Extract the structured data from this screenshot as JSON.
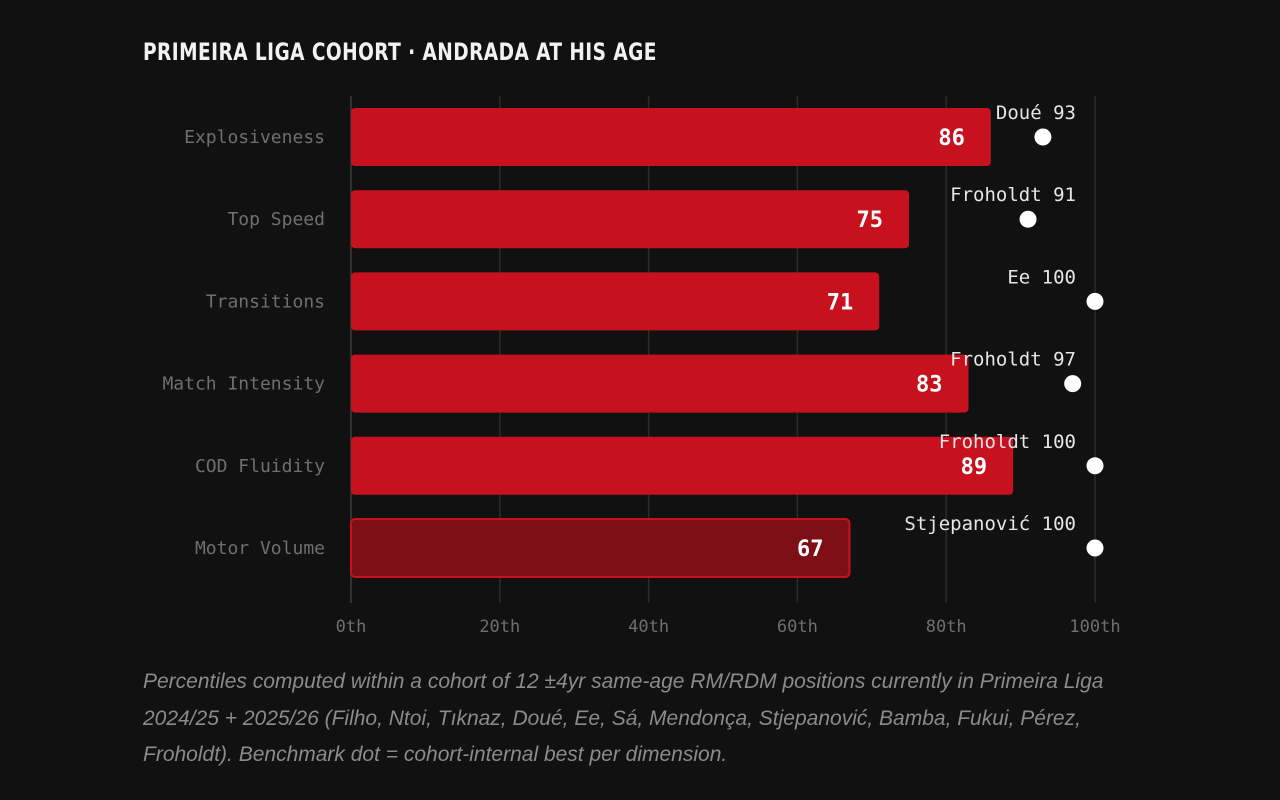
{
  "title": "PRIMEIRA LIGA COHORT · ANDRADA AT HIS AGE",
  "caption": "Percentiles computed within a cohort of 12 ±4yr same-age RM/RDM positions currently in Primeira Liga 2024/25 + 2025/26 (Filho, Ntoi, Tıknaz, Doué, Ee, Sá, Mendonça, Stjepanović, Bamba, Fukui, Pérez, Froholdt). Benchmark dot = cohort-internal best per dimension.",
  "colors": {
    "background": "#121111",
    "bar": "#c8111f",
    "bar_faded": "#7e0f16",
    "bar_text": "#ffffff",
    "benchmark_dot": "#ffffff",
    "benchmark_label": "#e6e6e6",
    "category_label": "#6f6f6f",
    "tick_label": "#6f6f6f",
    "gridline": "#2e2d22"
  },
  "chart_data": {
    "type": "bar",
    "orientation": "horizontal",
    "categories": [
      "Explosiveness",
      "Top Speed",
      "Transitions",
      "Match Intensity",
      "COD Fluidity",
      "Motor Volume"
    ],
    "values": [
      86,
      75,
      71,
      83,
      89,
      67
    ],
    "benchmark": {
      "names": [
        "Doué",
        "Froholdt",
        "Ee",
        "Froholdt",
        "Froholdt",
        "Stjepanović"
      ],
      "values": [
        93,
        91,
        100,
        97,
        100,
        100
      ]
    },
    "xlim": [
      0,
      100
    ],
    "xticks": [
      0,
      20,
      40,
      60,
      80,
      100
    ],
    "xtick_labels": [
      "0th",
      "20th",
      "40th",
      "60th",
      "80th",
      "100th"
    ],
    "grid": true,
    "legend": "none"
  }
}
